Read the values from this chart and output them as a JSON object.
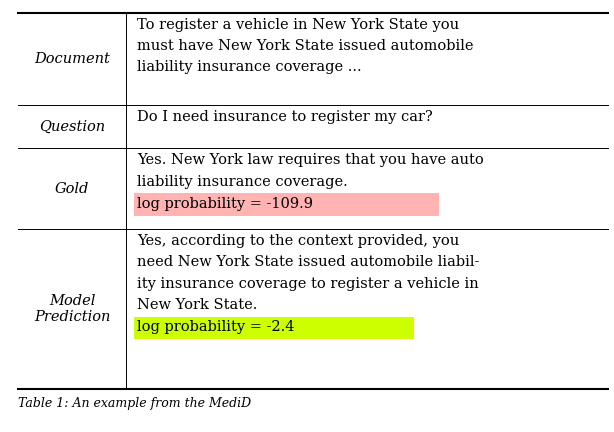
{
  "rows": [
    {
      "label": "Document",
      "content_lines": [
        "To register a vehicle in New York State you",
        "must have New York State issued automobile",
        "liability insurance coverage ..."
      ],
      "highlight": null,
      "highlight_color": null
    },
    {
      "label": "Question",
      "content_lines": [
        "Do I need insurance to register my car?"
      ],
      "highlight": null,
      "highlight_color": null
    },
    {
      "label": "Gold",
      "content_lines": [
        "Yes. New York law requires that you have auto",
        "liability insurance coverage."
      ],
      "highlight": "log probability = -109.9",
      "highlight_color": "#ffb3b3"
    },
    {
      "label": "Model\nPrediction",
      "content_lines": [
        "Yes, according to the context provided, you",
        "need New York State issued automobile liabil-",
        "ity insurance coverage to register a vehicle in",
        "New York State."
      ],
      "highlight": "log probability = -2.4",
      "highlight_color": "#ccff00"
    }
  ],
  "bg_color": "#ffffff",
  "border_color": "#000000",
  "text_color": "#000000",
  "label_fontsize": 10.5,
  "content_fontsize": 10.5,
  "caption": "Table 1: An example from the MediD",
  "fig_width": 6.14,
  "fig_height": 4.32,
  "dpi": 100
}
